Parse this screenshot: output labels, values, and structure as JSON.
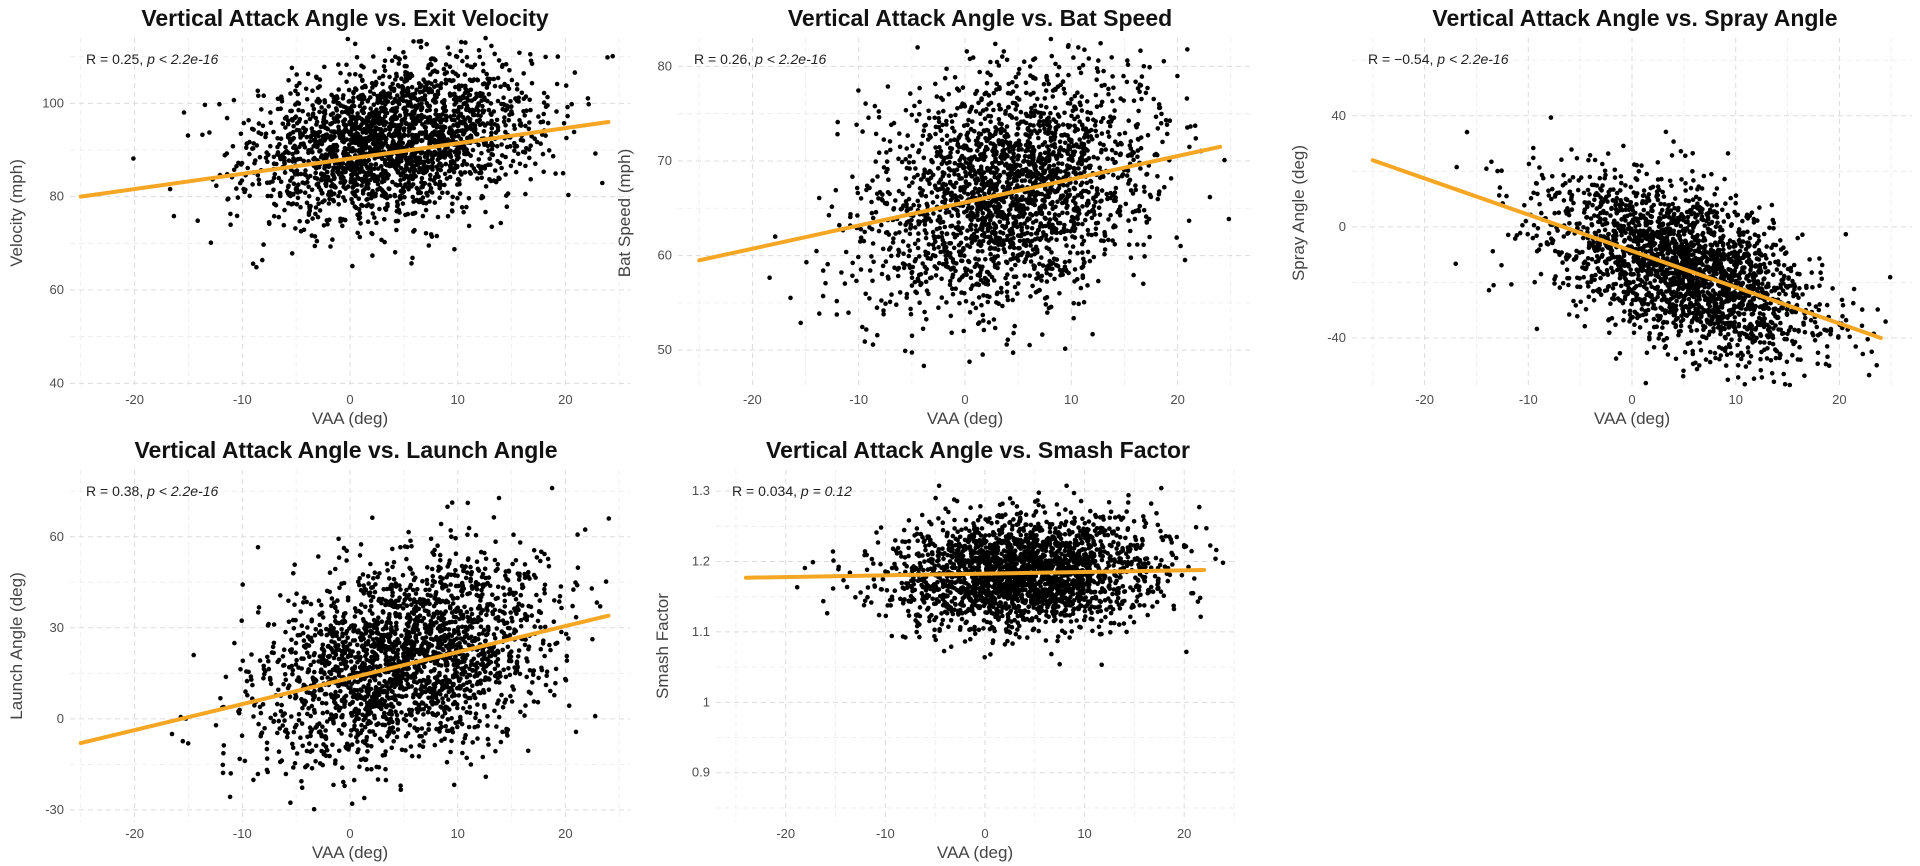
{
  "chart_data": [
    {
      "type": "scatter",
      "title": "Vertical Attack Angle vs. Exit Velocity",
      "xlabel": "VAA (deg)",
      "ylabel": "Velocity (mph)",
      "xlim": [
        -26,
        26
      ],
      "ylim": [
        39,
        114
      ],
      "xticks": [
        -20,
        -10,
        0,
        10,
        20
      ],
      "yticks": [
        40,
        60,
        80,
        100
      ],
      "stat_r": "R = 0.25,",
      "stat_p": "p < 2.2e-16",
      "trend": {
        "x": [
          -25,
          24
        ],
        "y": [
          80,
          96
        ]
      },
      "points": {
        "n": 2300,
        "x_center": 4,
        "x_sd": 6.5,
        "y_center": 92,
        "y_sd": 8,
        "slope": 0.33
      },
      "color_points": "#000000",
      "color_trend": "#F5A623"
    },
    {
      "type": "scatter",
      "title": "Vertical Attack Angle vs. Bat Speed",
      "xlabel": "VAA (deg)",
      "ylabel": "Bat Speed (mph)",
      "xlim": [
        -27,
        27
      ],
      "ylim": [
        46,
        83
      ],
      "xticks": [
        -20,
        -10,
        0,
        10,
        20
      ],
      "yticks": [
        50,
        60,
        70,
        80
      ],
      "stat_r": "R = 0.26,",
      "stat_p": "p < 2.2e-16",
      "trend": {
        "x": [
          -25,
          24
        ],
        "y": [
          59.5,
          71.5
        ]
      },
      "points": {
        "n": 2300,
        "x_center": 4,
        "x_sd": 6.5,
        "y_center": 67,
        "y_sd": 6,
        "slope": 0.25
      },
      "color_points": "#000000",
      "color_trend": "#F5A623"
    },
    {
      "type": "scatter",
      "title": "Vertical Attack Angle vs. Spray Angle",
      "xlabel": "VAA (deg)",
      "ylabel": "Spray Angle (deg)",
      "xlim": [
        -27,
        27
      ],
      "ylim": [
        -58,
        68
      ],
      "xticks": [
        -20,
        -10,
        0,
        10,
        20
      ],
      "yticks": [
        -40,
        0,
        40
      ],
      "stat_r": "R = −0.54,",
      "stat_p": "p < 2.2e-16",
      "trend": {
        "x": [
          -25,
          24
        ],
        "y": [
          24,
          -40
        ]
      },
      "points": {
        "n": 2300,
        "x_center": 5,
        "x_sd": 6.5,
        "y_center": -15,
        "y_sd": 14,
        "slope": -1.3
      },
      "color_points": "#000000",
      "color_trend": "#F5A623"
    },
    {
      "type": "scatter",
      "title": "Vertical Attack Angle vs. Launch Angle",
      "xlabel": "VAA (deg)",
      "ylabel": "Launch Angle (deg)",
      "xlim": [
        -26,
        26
      ],
      "ylim": [
        -34,
        82
      ],
      "xticks": [
        -20,
        -10,
        0,
        10,
        20
      ],
      "yticks": [
        -30,
        0,
        30,
        60
      ],
      "stat_r": "R = 0.38,",
      "stat_p": "p < 2.2e-16",
      "trend": {
        "x": [
          -25,
          24
        ],
        "y": [
          -8,
          34
        ]
      },
      "points": {
        "n": 2300,
        "x_center": 5,
        "x_sd": 6.5,
        "y_center": 20,
        "y_sd": 16,
        "slope": 0.85
      },
      "color_points": "#000000",
      "color_trend": "#F5A623"
    },
    {
      "type": "scatter",
      "title": "Vertical Attack Angle vs. Smash Factor",
      "xlabel": "VAA (deg)",
      "ylabel": "Smash Factor",
      "xlim": [
        -27,
        25
      ],
      "ylim": [
        0.83,
        1.33
      ],
      "xticks": [
        -20,
        -10,
        0,
        10,
        20
      ],
      "yticks": [
        0.9,
        1.0,
        1.1,
        1.2,
        1.3
      ],
      "stat_r": "R = 0.034,",
      "stat_p": "p = 0.12",
      "trend": {
        "x": [
          -24,
          22
        ],
        "y": [
          1.177,
          1.188
        ]
      },
      "points": {
        "n": 2300,
        "x_center": 4,
        "x_sd": 6.5,
        "y_center": 1.185,
        "y_sd": 0.04,
        "slope": 0.0003
      },
      "color_points": "#000000",
      "color_trend": "#F5A623"
    }
  ]
}
